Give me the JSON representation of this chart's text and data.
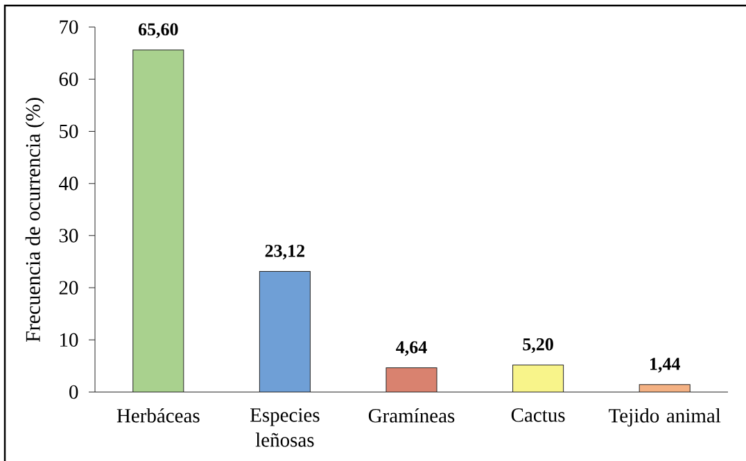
{
  "chart_data": {
    "type": "bar",
    "categories": [
      "Herbáceas",
      "Especies leñosas",
      "Gramíneas",
      "Cactus",
      "Tejido animal"
    ],
    "values": [
      65.6,
      23.12,
      4.64,
      5.2,
      1.44
    ],
    "value_labels": [
      "65,60",
      "23,12",
      "4,64",
      "5,20",
      "1,44"
    ],
    "colors": [
      "#a9d18e",
      "#6f9fd6",
      "#d9826f",
      "#f8f48a",
      "#f4b183"
    ],
    "ylabel": "Frecuencia de ocurrencia (%)",
    "ylim": [
      0,
      70
    ],
    "yticks": [
      0,
      10,
      20,
      30,
      40,
      50,
      60,
      70
    ],
    "grid": false
  }
}
